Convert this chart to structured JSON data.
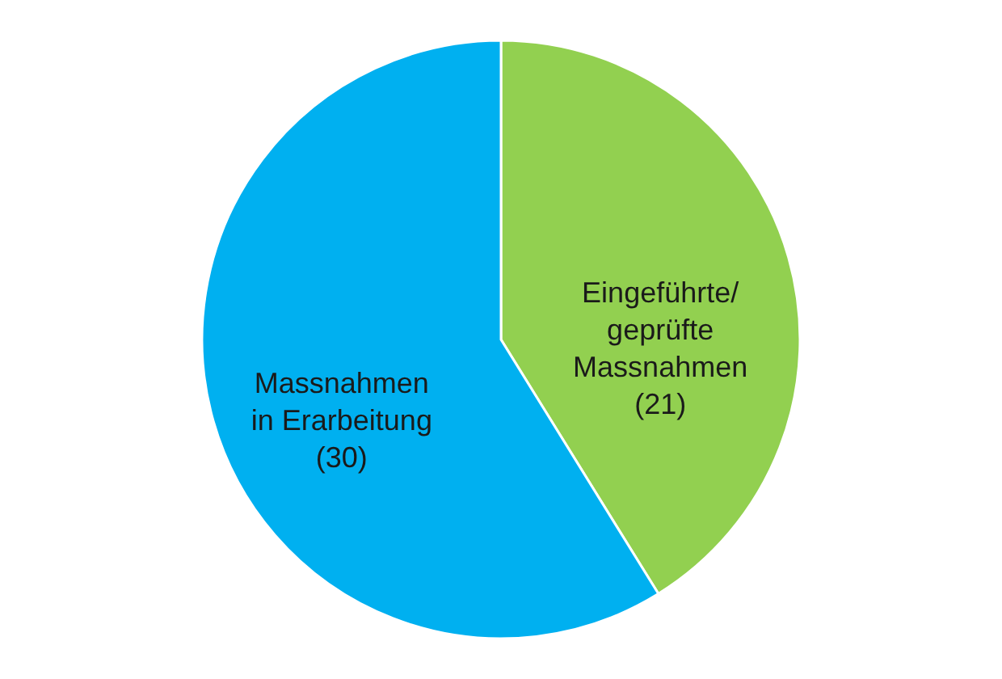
{
  "chart_data": {
    "type": "pie",
    "categories": [
      "Eingeführte/geprüfte Massnahmen",
      "Massnahmen in Erarbeitung"
    ],
    "values": [
      21,
      30
    ],
    "value_labels": [
      "(21)",
      "(30)"
    ],
    "colors": [
      "#92d050",
      "#00b0f0"
    ]
  }
}
